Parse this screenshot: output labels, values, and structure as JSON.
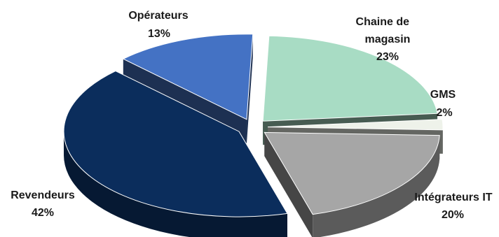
{
  "chart_data": {
    "type": "pie",
    "title": "",
    "style": "3d-exploded",
    "legend": "none",
    "slices": [
      {
        "label": "Chaine de magasin",
        "value": 23,
        "percent_label": "23%",
        "color": "#a8dcc4"
      },
      {
        "label": "GMS",
        "value": 2,
        "percent_label": "2%",
        "color": "#eef2ea"
      },
      {
        "label": "Intégrateurs IT",
        "value": 20,
        "percent_label": "20%",
        "color": "#a6a6a6"
      },
      {
        "label": "Revendeurs",
        "value": 42,
        "percent_label": "42%",
        "color": "#0b2d5c"
      },
      {
        "label": "Opérateurs",
        "value": 13,
        "percent_label": "13%",
        "color": "#4472c4"
      }
    ]
  }
}
